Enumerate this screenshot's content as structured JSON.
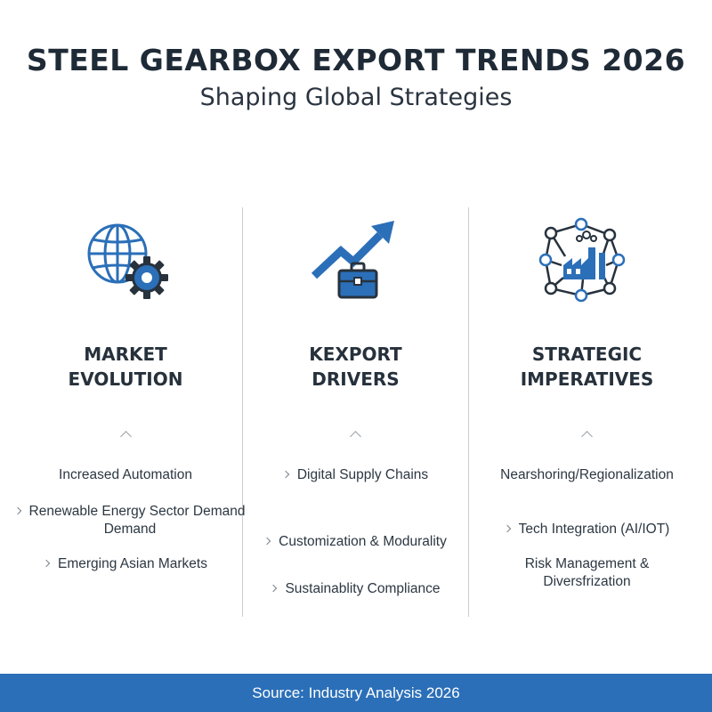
{
  "header": {
    "title": "STEEL GEARBOX EXPORT TRENDS 2026",
    "subtitle": "Shaping Global Strategies"
  },
  "columns": [
    {
      "icon": "globe-gear-icon",
      "heading_line1": "MARKET",
      "heading_line2": "EVOLUTION",
      "items": [
        {
          "text": "Increased Automation"
        },
        {
          "text": "Renewable Energy Sector Demand",
          "text2": "Demand"
        },
        {
          "text": "Emerging Asian Markets"
        }
      ]
    },
    {
      "icon": "growth-arrow-briefcase-icon",
      "heading_line1": "KEXPORT",
      "heading_line2": "DRIVERS",
      "items": [
        {
          "text": "Digital Supply Chains"
        },
        {
          "text": "Customization & Modurality"
        },
        {
          "text": "Sustainablity Compliance"
        }
      ]
    },
    {
      "icon": "factory-network-icon",
      "heading_line1": "STRATEGIC",
      "heading_line2": "IMPERATIVES",
      "items": [
        {
          "text": "Nearshoring/Regionalization"
        },
        {
          "text": "Tech Integration (AI/IOT)"
        },
        {
          "text": "Risk Management &",
          "text2": "Diversfrization"
        }
      ]
    }
  ],
  "footer": {
    "source": "Source: Industry Analysis 2026"
  },
  "colors": {
    "accent_blue": "#2b6fb8",
    "icon_dark": "#27323d",
    "text": "#23303d"
  }
}
